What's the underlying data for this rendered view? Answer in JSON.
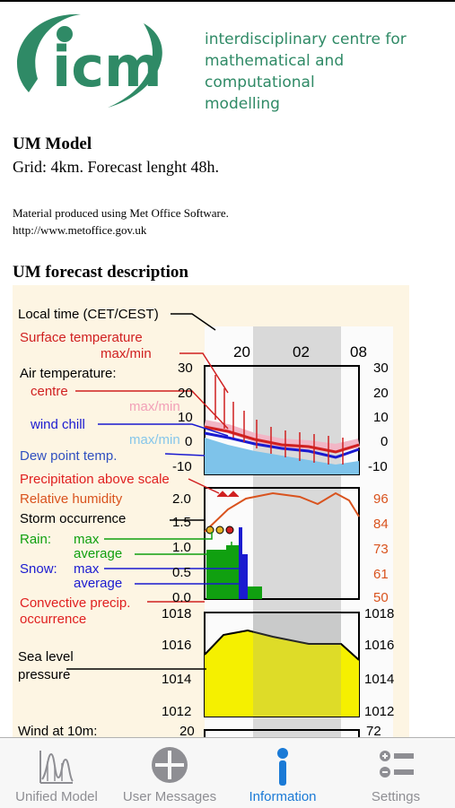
{
  "logo": {
    "wordmark": "icm",
    "lines": [
      "interdisciplinary centre for",
      "mathematical and computational",
      "modelling"
    ],
    "color": "#2f8a66"
  },
  "model": {
    "title": "UM Model",
    "grid": "Grid: 4km. Forecast lenght 48h."
  },
  "material": {
    "line1": "Material produced using Met Office Software.",
    "line2": "http://www.metoffice.gov.uk"
  },
  "description": {
    "title": "UM forecast description"
  },
  "diagram": {
    "local_time": "Local time (CET/CEST)",
    "time_ticks": [
      "20",
      "02",
      "08"
    ],
    "surface_temp": "Surface temperature",
    "surface_temp_maxmin": "max/min",
    "air_temp": "Air temperature:",
    "centre": "centre",
    "centre_maxmin": "max/min",
    "wind_chill": "wind chill",
    "wind_chill_maxmin": "max/min",
    "dew_point": "Dew point temp.",
    "temp_ticks": [
      "30",
      "20",
      "10",
      "0",
      "-10"
    ],
    "precip_above": "Precipitation above scale",
    "rel_humidity": "Relative humidity",
    "storm": "Storm occurrence",
    "rain": "Rain:",
    "rain_max": "max",
    "rain_avg": "average",
    "snow": "Snow:",
    "snow_max": "max",
    "snow_avg": "average",
    "convective": "Convective precip.",
    "convective2": "occurrence",
    "precip_ticks": [
      "2.0",
      "1.5",
      "1.0",
      "0.5",
      "0.0"
    ],
    "rh_ticks": [
      "96",
      "84",
      "73",
      "61",
      "50"
    ],
    "sea_level": "Sea level",
    "pressure": "pressure",
    "pressure_ticks": [
      "1018",
      "1016",
      "1014",
      "1012"
    ],
    "wind": "Wind at 10m:",
    "wind_left": "20",
    "wind_right": "72"
  },
  "tabs": [
    {
      "label": "Unified Model",
      "icon": "unified-model-icon"
    },
    {
      "label": "User Messages",
      "icon": "user-messages-icon"
    },
    {
      "label": "Information",
      "icon": "information-icon",
      "active": true
    },
    {
      "label": "Settings",
      "icon": "settings-icon"
    }
  ],
  "colors": {
    "active_tab": "#1a7ad6",
    "inactive_tab": "#8e8e93",
    "red": "#d02020",
    "blue": "#1a1ad0",
    "green": "#10a010"
  }
}
